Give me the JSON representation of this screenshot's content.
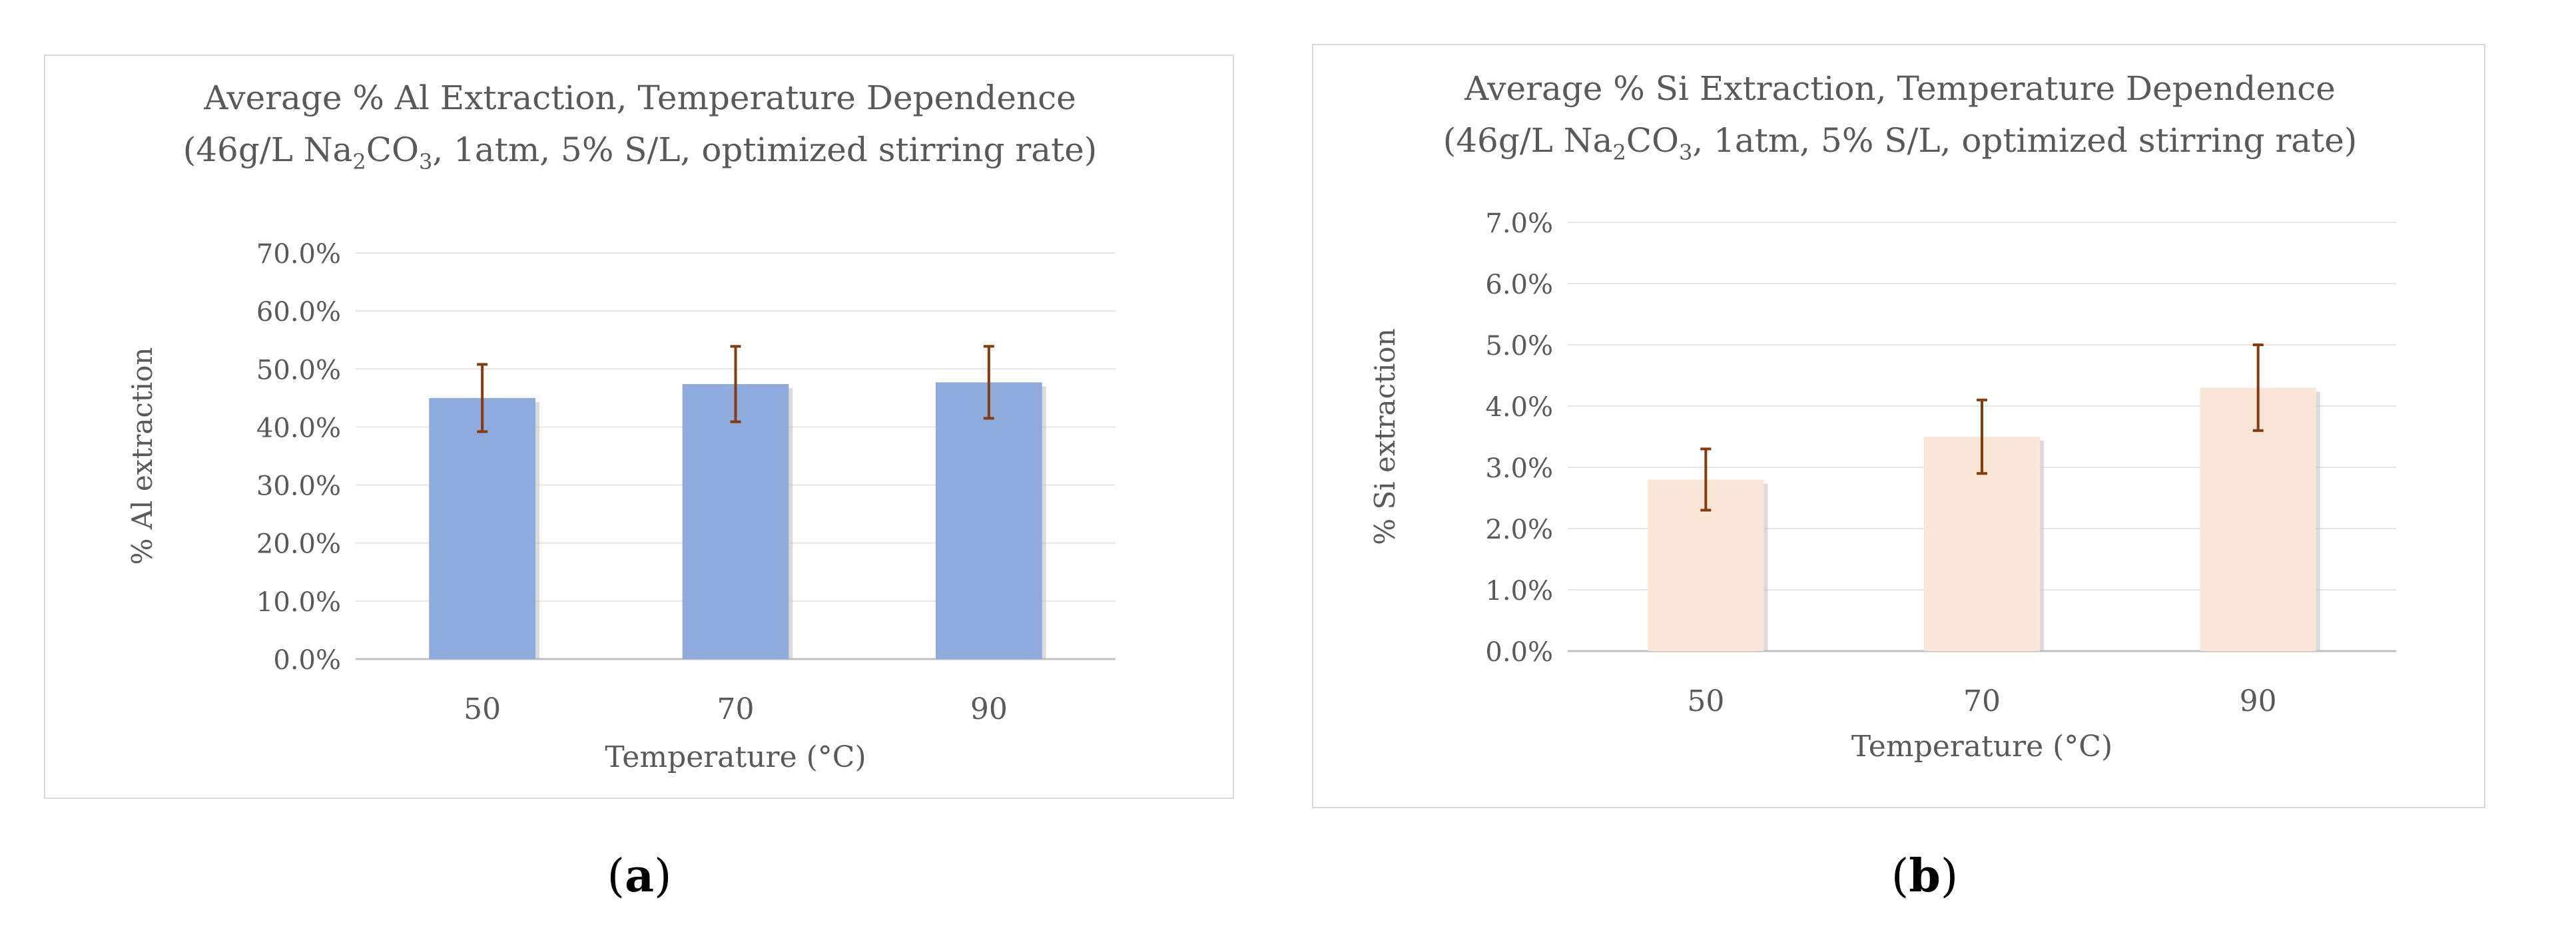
{
  "chart_data": [
    {
      "type": "bar",
      "panel_label": "a",
      "title": "Average % Al Extraction, Temperature Dependence",
      "subtitle": {
        "before": "(46g/L Na",
        "sub1": "2",
        "middle": "CO",
        "sub2": "3",
        "after": ", 1atm, 5% S/L, optimized stirring rate)"
      },
      "categories": [
        "50",
        "70",
        "90"
      ],
      "values": [
        45.0,
        47.4,
        47.7
      ],
      "errors": [
        5.8,
        6.5,
        6.2
      ],
      "xlabel": "Temperature (°C)",
      "ylabel": "% Al extraction",
      "ylim": [
        0,
        70
      ],
      "yticks": [
        "0.0%",
        "10.0%",
        "20.0%",
        "30.0%",
        "40.0%",
        "50.0%",
        "60.0%",
        "70.0%"
      ],
      "bar_color": "#8faadc",
      "error_color": "#843c0c",
      "grid": true
    },
    {
      "type": "bar",
      "panel_label": "b",
      "title": "Average % Si Extraction, Temperature Dependence",
      "subtitle": {
        "before": "(46g/L Na",
        "sub1": "2",
        "middle": "CO",
        "sub2": "3",
        "after": ", 1atm, 5% S/L, optimized stirring rate)"
      },
      "categories": [
        "50",
        "70",
        "90"
      ],
      "values": [
        2.8,
        3.5,
        4.3
      ],
      "errors": [
        0.5,
        0.6,
        0.7
      ],
      "xlabel": "Temperature (°C)",
      "ylabel": "% Si extraction",
      "ylim": [
        0,
        7
      ],
      "yticks": [
        "0.0%",
        "1.0%",
        "2.0%",
        "3.0%",
        "4.0%",
        "5.0%",
        "6.0%",
        "7.0%"
      ],
      "bar_color": "#fbe5d6",
      "error_color": "#843c0c",
      "grid": true
    }
  ],
  "captions": [
    {
      "open": "(",
      "letter": "a",
      "close": ")"
    },
    {
      "open": "(",
      "letter": "b",
      "close": ")"
    }
  ]
}
